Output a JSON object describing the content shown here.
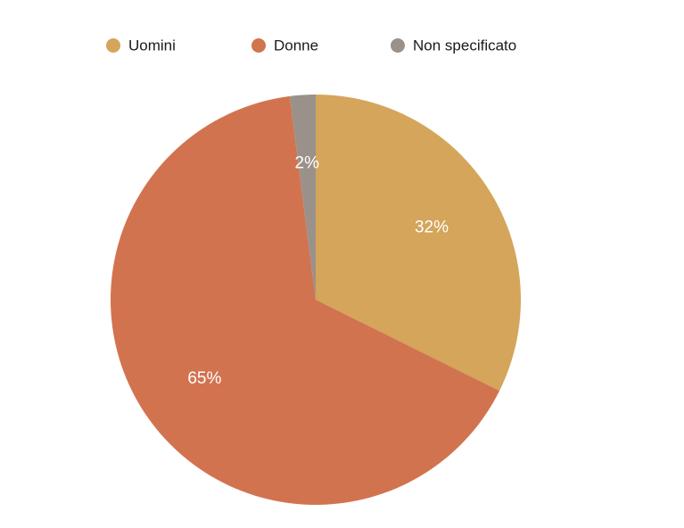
{
  "chart_data": {
    "type": "pie",
    "categories": [
      "Uomini",
      "Donne",
      "Non specificato"
    ],
    "values": [
      32,
      65,
      2
    ],
    "value_labels": [
      "32%",
      "65%",
      "2%"
    ],
    "colors": [
      "#d4a55a",
      "#d2734f",
      "#9a918a"
    ],
    "legend": "top"
  }
}
